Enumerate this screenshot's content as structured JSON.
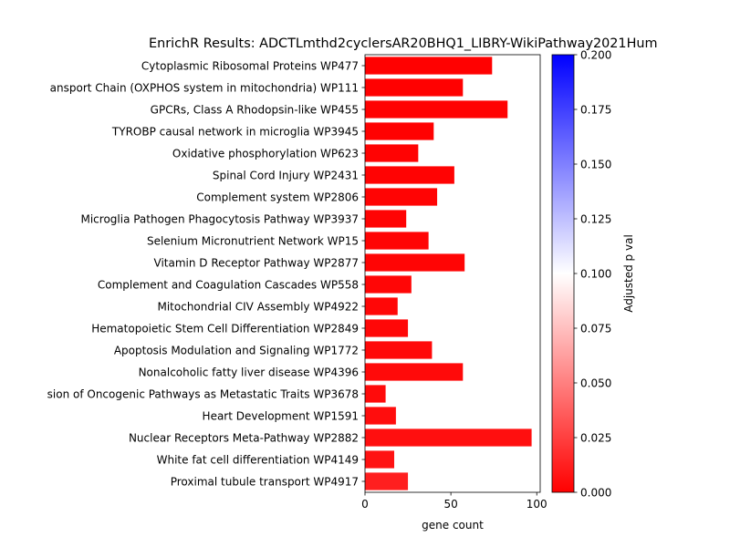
{
  "chart_data": {
    "type": "bar",
    "orientation": "horizontal",
    "title": "EnrichR Results: ADCTLmthd2cyclersAR20BHQ1_LIBRY-WikiPathway2021Hum",
    "xlabel": "gene count",
    "ylabel": "",
    "xlim": [
      0,
      102
    ],
    "xticks": [
      0,
      50,
      100
    ],
    "grid": false,
    "categories": [
      "Cytoplasmic Ribosomal Proteins WP477",
      "ansport Chain (OXPHOS system in mitochondria) WP111",
      "GPCRs, Class A Rhodopsin-like WP455",
      "TYROBP causal network in microglia WP3945",
      "Oxidative phosphorylation WP623",
      "Spinal Cord Injury WP2431",
      "Complement system WP2806",
      "Microglia Pathogen Phagocytosis Pathway WP3937",
      "Selenium Micronutrient Network WP15",
      "Vitamin D Receptor Pathway WP2877",
      "Complement and Coagulation Cascades WP558",
      "Mitochondrial CIV Assembly WP4922",
      "Hematopoietic Stem Cell Differentiation WP2849",
      "Apoptosis Modulation and Signaling WP1772",
      "Nonalcoholic fatty liver disease WP4396",
      "sion of Oncogenic Pathways as Metastatic Traits WP3678",
      "Heart Development WP1591",
      "Nuclear Receptors Meta-Pathway WP2882",
      "White fat cell differentiation WP4149",
      "Proximal tubule transport WP4917"
    ],
    "values": [
      74,
      57,
      83,
      40,
      31,
      52,
      42,
      24,
      37,
      58,
      27,
      19,
      25,
      39,
      57,
      12,
      18,
      97,
      17,
      25
    ],
    "adjusted_p": [
      0.0002,
      0.0004,
      0.0006,
      0.0008,
      0.001,
      0.0012,
      0.0014,
      0.0016,
      0.0018,
      0.002,
      0.0024,
      0.0026,
      0.003,
      0.0035,
      0.004,
      0.0045,
      0.005,
      0.006,
      0.007,
      0.012
    ],
    "colorbar": {
      "label": "Adjusted p val",
      "range": [
        0,
        0.2
      ],
      "ticks": [
        "0.000",
        "0.025",
        "0.050",
        "0.075",
        "0.100",
        "0.125",
        "0.150",
        "0.175",
        "0.200"
      ],
      "colormap": [
        "#ff0000",
        "#ffffff",
        "#0000ff"
      ]
    }
  }
}
